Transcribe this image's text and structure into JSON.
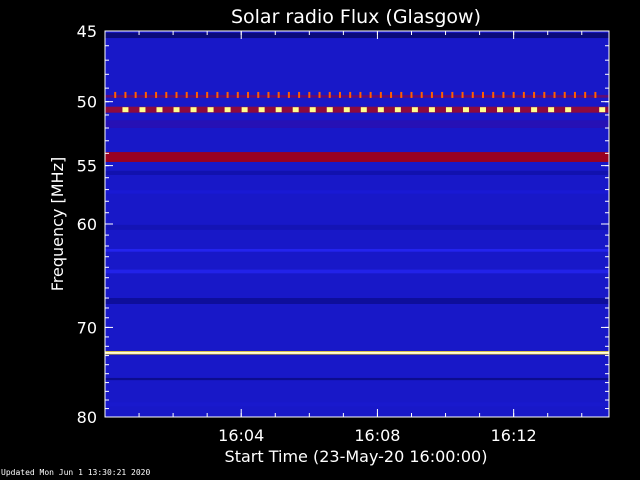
{
  "footer": {
    "updated": "Updated Mon Jun  1 13:30:21 2020"
  },
  "chart_data": {
    "type": "heatmap",
    "title": "Solar radio Flux (Glasgow)",
    "xlabel": "Start Time (23-May-20 16:00:00)",
    "ylabel": "Frequency [MHz]",
    "x_range_minutes": [
      0,
      14.8
    ],
    "x_ticks": [
      {
        "minute": 4,
        "label": "16:04"
      },
      {
        "minute": 8,
        "label": "16:08"
      },
      {
        "minute": 12,
        "label": "16:12"
      }
    ],
    "y_range_mhz": [
      45,
      80
    ],
    "y_scale": "log",
    "y_ticks": [
      {
        "mhz": 45,
        "label": "45"
      },
      {
        "mhz": 50,
        "label": "50"
      },
      {
        "mhz": 55,
        "label": "55"
      },
      {
        "mhz": 60,
        "label": "60"
      },
      {
        "mhz": 70,
        "label": "70"
      },
      {
        "mhz": 80,
        "label": "80"
      }
    ],
    "background_color": "#1818c8",
    "bands": [
      {
        "mhz": 45.3,
        "width_mhz": 0.35,
        "color": "#0a0a70",
        "opacity": 0.9
      },
      {
        "mhz": 49.6,
        "width_mhz": 0.2,
        "color": "#6a0a6a",
        "opacity": 0.9
      },
      {
        "mhz": 50.6,
        "width_mhz": 0.45,
        "color": "#9a0a30",
        "opacity": 0.9
      },
      {
        "mhz": 51.7,
        "width_mhz": 0.6,
        "color": "#2a10b0",
        "opacity": 0.8
      },
      {
        "mhz": 54.3,
        "width_mhz": 0.8,
        "color": "#a00018",
        "opacity": 0.95
      },
      {
        "mhz": 55.6,
        "width_mhz": 0.35,
        "color": "#1010a8",
        "opacity": 0.8
      },
      {
        "mhz": 57.2,
        "width_mhz": 0.3,
        "color": "#1a1ad8",
        "opacity": 0.7
      },
      {
        "mhz": 60.3,
        "width_mhz": 0.45,
        "color": "#1414b0",
        "opacity": 0.8
      },
      {
        "mhz": 62.4,
        "width_mhz": 0.25,
        "color": "#2a2aff",
        "opacity": 0.7
      },
      {
        "mhz": 64.4,
        "width_mhz": 0.35,
        "color": "#2a2aff",
        "opacity": 0.6
      },
      {
        "mhz": 67.3,
        "width_mhz": 0.6,
        "color": "#0c0c90",
        "opacity": 0.8
      },
      {
        "mhz": 72.7,
        "width_mhz": 0.35,
        "color": "#ffe000",
        "opacity": 1.0
      },
      {
        "mhz": 75.6,
        "width_mhz": 0.25,
        "color": "#0a0a80",
        "opacity": 0.8
      },
      {
        "mhz": 78.5,
        "width_mhz": 0.5,
        "color": "#1a1ad0",
        "opacity": 0.6
      }
    ],
    "spots": {
      "mhz": 50.6,
      "minutes": [
        0.6,
        1.1,
        1.6,
        2.1,
        2.6,
        3.1,
        3.6,
        4.1,
        4.6,
        5.1,
        5.6,
        6.1,
        6.6,
        7.1,
        7.6,
        8.1,
        8.6,
        9.1,
        9.6,
        10.1,
        10.6,
        11.1,
        11.6,
        12.1,
        12.6,
        13.1,
        13.6,
        14.6
      ],
      "color": "#ffff90"
    },
    "tick_row": {
      "mhz": 49.5,
      "minutes": [
        0.3,
        0.6,
        0.9,
        1.2,
        1.5,
        1.8,
        2.1,
        2.4,
        2.7,
        3.0,
        3.3,
        3.6,
        3.9,
        4.2,
        4.5,
        4.8,
        5.1,
        5.4,
        5.7,
        6.0,
        6.3,
        6.6,
        6.9,
        7.2,
        7.5,
        7.8,
        8.1,
        8.4,
        8.7,
        9.0,
        9.3,
        9.6,
        9.9,
        10.2,
        10.5,
        10.8,
        11.1,
        11.4,
        11.7,
        12.0,
        12.3,
        12.6,
        12.9,
        13.2,
        13.5,
        13.8,
        14.1,
        14.4
      ],
      "color": "#ff6000"
    },
    "text_color": "#ffffff",
    "axis_color": "#ffffff"
  }
}
